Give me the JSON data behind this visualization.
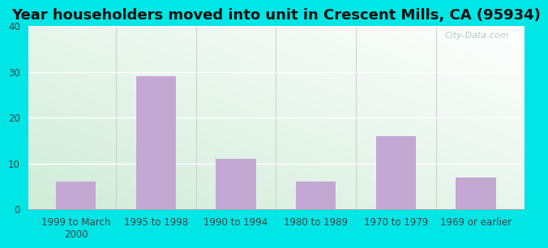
{
  "title": "Year householders moved into unit in Crescent Mills, CA (95934)",
  "categories": [
    "1999 to March\n2000",
    "1995 to 1998",
    "1990 to 1994",
    "1980 to 1989",
    "1970 to 1979",
    "1969 or earlier"
  ],
  "values": [
    6,
    29,
    11,
    6,
    16,
    7
  ],
  "bar_color": "#c4a8d4",
  "ylim": [
    0,
    40
  ],
  "yticks": [
    0,
    10,
    20,
    30,
    40
  ],
  "title_fontsize": 13,
  "tick_fontsize": 8.5,
  "outer_bg_color": "#00e5e5",
  "plot_bg_color_topleft": "#d0ecd8",
  "plot_bg_color_bottomright": "#ffffff",
  "grid_color": "#ffffff",
  "watermark_text": "City-Data.com",
  "watermark_color": "#aac8c8"
}
